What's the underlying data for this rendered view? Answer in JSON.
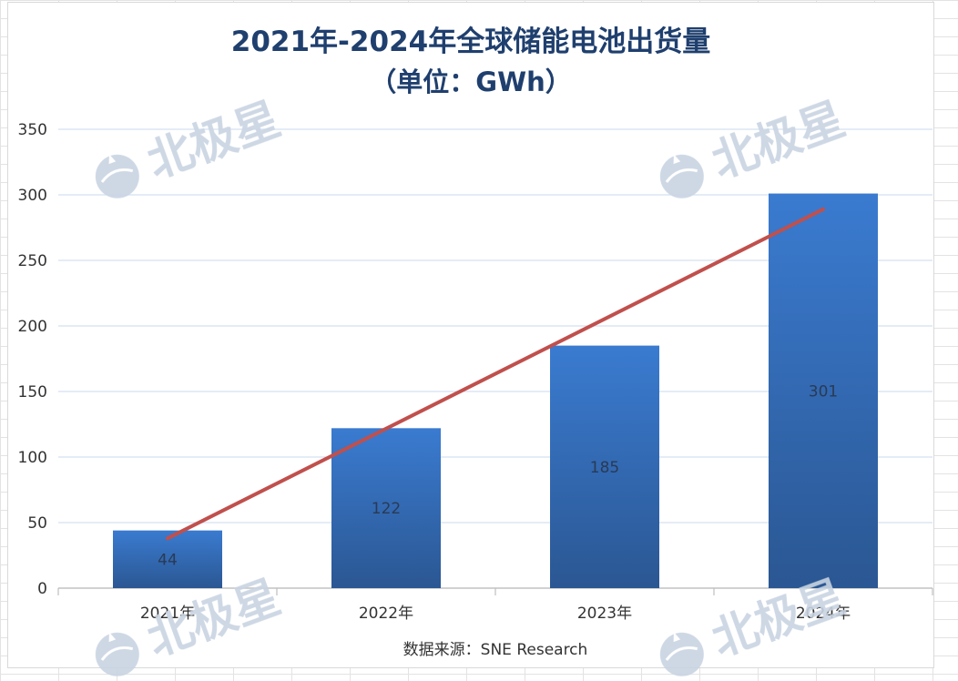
{
  "chart_data": {
    "type": "bar",
    "title": "2021年-2024年全球储能电池出货量",
    "subtitle": "（单位：GWh）",
    "categories": [
      "2021年",
      "2022年",
      "2023年",
      "2024年"
    ],
    "values": [
      44,
      122,
      185,
      301
    ],
    "data_labels": [
      "44",
      "122",
      "185",
      "301"
    ],
    "y_ticks": [
      "0",
      "50",
      "100",
      "150",
      "200",
      "250",
      "300",
      "350"
    ],
    "ylim": [
      0,
      350
    ],
    "grid": true,
    "trend_line": {
      "start": 38,
      "end": 289,
      "color": "#c0504d"
    },
    "bar_color_top": "#3a7bd0",
    "bar_color_bottom": "#2b5793",
    "source": "数据来源：SNE Research"
  },
  "watermark": {
    "text": "北极星",
    "color": "#c9d4e2"
  }
}
